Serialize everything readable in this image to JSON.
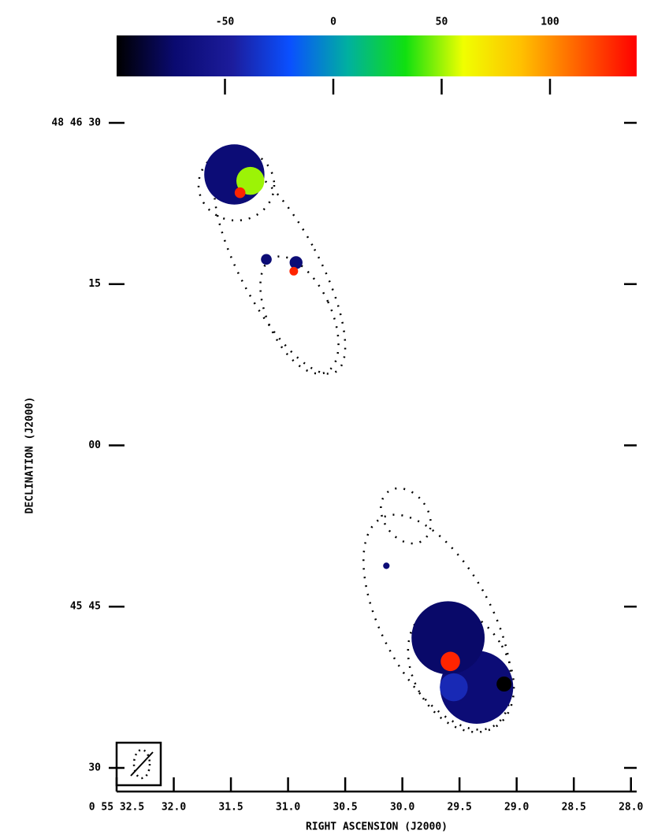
{
  "chart_data": {
    "type": "image",
    "xlabel": "RIGHT ASCENSION (J2000)",
    "ylabel": "DECLINATION (J2000)",
    "xlim": [
      32.5,
      27.95
    ],
    "xticks": [
      {
        "value": 32.5,
        "label": "0 55 32.5"
      },
      {
        "value": 32.0,
        "label": "32.0"
      },
      {
        "value": 31.5,
        "label": "31.5"
      },
      {
        "value": 31.0,
        "label": "31.0"
      },
      {
        "value": 30.5,
        "label": "30.5"
      },
      {
        "value": 30.0,
        "label": "30.0"
      },
      {
        "value": 29.5,
        "label": "29.5"
      },
      {
        "value": 29.0,
        "label": "29.0"
      },
      {
        "value": 28.5,
        "label": "28.5"
      },
      {
        "value": 28.0,
        "label": "28.0"
      }
    ],
    "ylim": [
      34.1,
      -32.2
    ],
    "yticks": [
      {
        "value": 30,
        "label": "48 46 30"
      },
      {
        "value": 15,
        "label": "15"
      },
      {
        "value": 0,
        "label": "00"
      },
      {
        "value": -15,
        "label": "45 45"
      },
      {
        "value": -30,
        "label": "30"
      }
    ],
    "colorbar": {
      "clim": [
        -100,
        140
      ],
      "ticks": [
        -50,
        0,
        50,
        100
      ],
      "colormap": [
        "#000000",
        "#0a0a70",
        "#1c1c9c",
        "#0a50ff",
        "#00b0a0",
        "#10e010",
        "#f0ff00",
        "#ffc000",
        "#ff6000",
        "#ff0000"
      ]
    },
    "image": {
      "x": [
        31.47,
        31.33,
        31.42,
        31.19,
        30.93,
        30.95,
        30.14,
        29.35,
        29.6,
        29.55,
        29.58,
        29.11
      ],
      "y": [
        25.2,
        24.6,
        23.5,
        17.3,
        17.0,
        16.2,
        -11.2,
        -22.5,
        -17.9,
        -22.5,
        -20.1,
        -22.2
      ],
      "values": [
        -70,
        50,
        130,
        -70,
        -70,
        130,
        -70,
        -70,
        -75,
        -40,
        130,
        -100
      ],
      "sizes": [
        2.8,
        1.3,
        0.5,
        0.5,
        0.6,
        0.4,
        0.3,
        3.4,
        3.4,
        1.3,
        0.9,
        0.7
      ]
    }
  }
}
